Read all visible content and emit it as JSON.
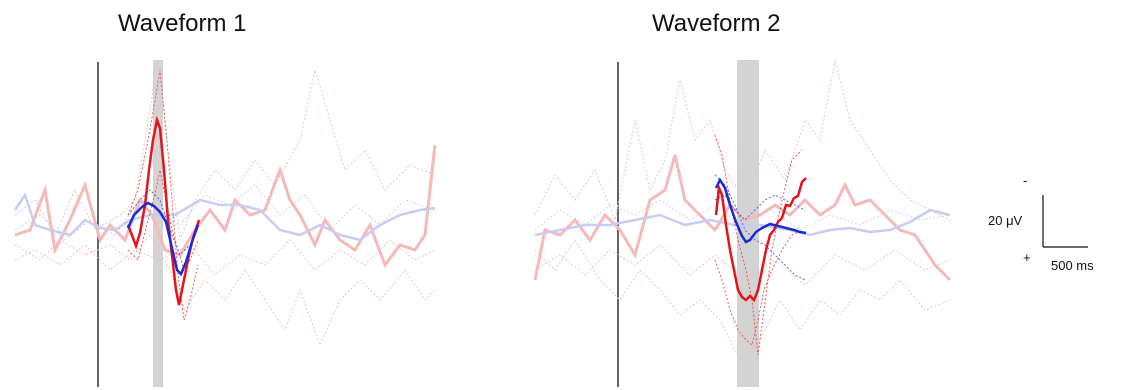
{
  "panels": [
    {
      "title": "Waveform 1"
    },
    {
      "title": "Waveform 2"
    }
  ],
  "scale_bar": {
    "top_sign": "-",
    "bottom_sign": "+",
    "amplitude_label": "20 μV",
    "time_label": "500 ms"
  },
  "colors": {
    "highlight_red": "#e5141a",
    "highlight_blue": "#1a2bd6",
    "faded_red": "#f6b8b8",
    "faded_blue": "#c8cdf2",
    "window_gray": "#d3d3d3",
    "axis": "#111111"
  }
}
